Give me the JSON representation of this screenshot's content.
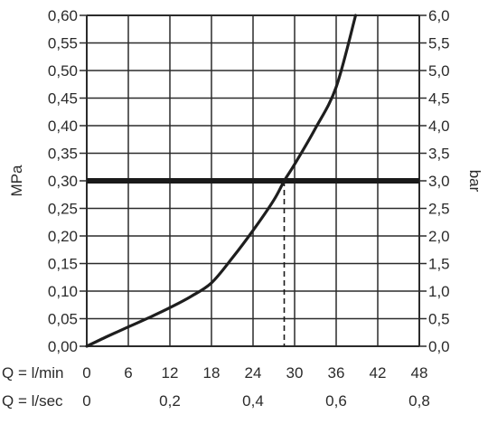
{
  "chart_data": {
    "type": "line",
    "title": "",
    "y_left": {
      "label": "MPa",
      "ylim": [
        0,
        0.6
      ],
      "ticks": [
        "0,00",
        "0,05",
        "0,10",
        "0,15",
        "0,20",
        "0,25",
        "0,30",
        "0,35",
        "0,40",
        "0,45",
        "0,50",
        "0,55",
        "0,60"
      ]
    },
    "y_right": {
      "label": "bar",
      "ylim": [
        0,
        6
      ],
      "ticks": [
        "0,0",
        "0,5",
        "1,0",
        "1,5",
        "2,0",
        "2,5",
        "3,0",
        "3,5",
        "4,0",
        "4,5",
        "5,0",
        "5,5",
        "6,0"
      ]
    },
    "x_rows": [
      {
        "label": "Q = l/min",
        "xlim": [
          0,
          48
        ],
        "ticks": [
          {
            "value": 0,
            "text": "0"
          },
          {
            "value": 6,
            "text": "6"
          },
          {
            "value": 12,
            "text": "12"
          },
          {
            "value": 18,
            "text": "18"
          },
          {
            "value": 24,
            "text": "24"
          },
          {
            "value": 30,
            "text": "30"
          },
          {
            "value": 36,
            "text": "36"
          },
          {
            "value": 42,
            "text": "42"
          },
          {
            "value": 48,
            "text": "48"
          }
        ]
      },
      {
        "label": "Q = l/sec",
        "ticks": [
          {
            "value": 0,
            "text": "0"
          },
          {
            "value": 0.2,
            "text": "0,2"
          },
          {
            "value": 0.4,
            "text": "0,4"
          },
          {
            "value": 0.6,
            "text": "0,6"
          },
          {
            "value": 0.8,
            "text": "0,8"
          }
        ]
      }
    ],
    "grid": true,
    "reference_line": {
      "y": 0.3
    },
    "intersection_marker": {
      "x": 28.5,
      "y": 0.3
    },
    "series": [
      {
        "x": [
          0,
          3,
          6,
          9,
          12,
          15,
          18,
          21,
          24,
          27,
          28.5,
          30,
          33,
          36,
          38.8
        ],
        "y": [
          0.0,
          0.018,
          0.035,
          0.052,
          0.07,
          0.09,
          0.115,
          0.16,
          0.21,
          0.265,
          0.3,
          0.33,
          0.395,
          0.47,
          0.6
        ]
      }
    ],
    "style": {
      "curve_color": "#1e1e1e",
      "grid_color": "#2b2b2b",
      "reference_color": "#1a1a1a"
    }
  }
}
